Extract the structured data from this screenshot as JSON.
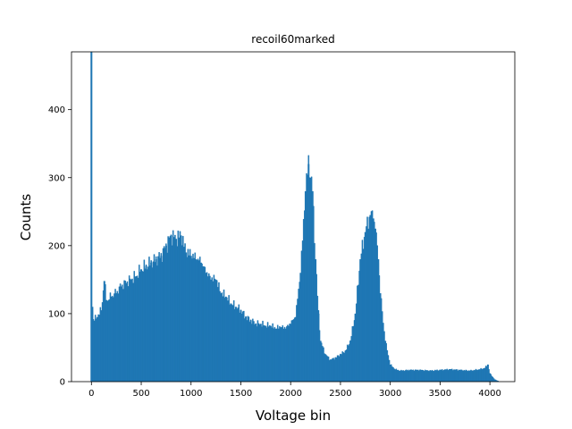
{
  "chart_data": {
    "type": "bar",
    "title": "recoil60marked",
    "xlabel": "Voltage bin",
    "ylabel": "Counts",
    "xlim": [
      -200,
      4250
    ],
    "ylim": [
      0,
      485
    ],
    "xticks": [
      0,
      500,
      1000,
      1500,
      2000,
      2500,
      3000,
      3500,
      4000
    ],
    "yticks": [
      0,
      100,
      200,
      300,
      400
    ],
    "color": "#1f77b4",
    "grid": false,
    "legend": "none",
    "series": [
      {
        "x": [
          0,
          10,
          20,
          60,
          100,
          130,
          150,
          175,
          200,
          250,
          300,
          350,
          400,
          450,
          500,
          550,
          600,
          650,
          700,
          750,
          800,
          850,
          900,
          950,
          1000,
          1050,
          1100,
          1150,
          1200,
          1250,
          1300,
          1350,
          1400,
          1450,
          1500,
          1550,
          1600,
          1650,
          1700,
          1750,
          1800,
          1850,
          1900,
          1950,
          2000,
          2050,
          2100,
          2150,
          2180,
          2200,
          2220,
          2250,
          2280,
          2300,
          2350,
          2400,
          2450,
          2500,
          2550,
          2600,
          2650,
          2700,
          2750,
          2800,
          2830,
          2850,
          2880,
          2900,
          2950,
          3000,
          3050,
          3100,
          3200,
          3300,
          3400,
          3500,
          3600,
          3700,
          3800,
          3900,
          3950,
          3980,
          4000,
          4050,
          4080
        ],
        "values": [
          485,
          110,
          90,
          95,
          105,
          148,
          120,
          120,
          125,
          130,
          140,
          145,
          150,
          155,
          165,
          170,
          175,
          180,
          185,
          200,
          215,
          210,
          215,
          190,
          185,
          180,
          175,
          160,
          150,
          150,
          130,
          125,
          115,
          110,
          105,
          95,
          90,
          85,
          85,
          82,
          82,
          78,
          80,
          78,
          85,
          95,
          160,
          280,
          320,
          300,
          280,
          180,
          100,
          60,
          40,
          32,
          35,
          40,
          45,
          60,
          100,
          180,
          220,
          245,
          240,
          225,
          180,
          130,
          60,
          25,
          18,
          16,
          17,
          17,
          16,
          17,
          18,
          17,
          16,
          18,
          20,
          25,
          12,
          3,
          1
        ]
      }
    ]
  }
}
